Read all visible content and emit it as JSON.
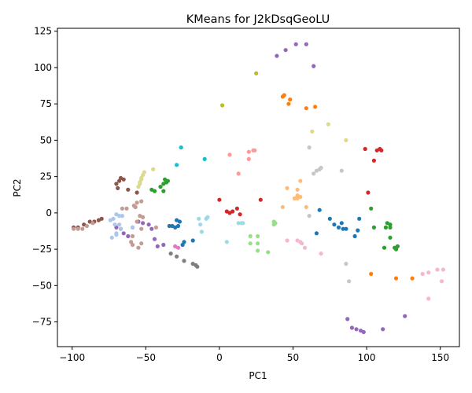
{
  "chart_data": {
    "type": "scatter",
    "title": "KMeans for J2kDsqGeoLU",
    "xlabel": "PC1",
    "ylabel": "PC2",
    "xlim": [
      -110,
      163
    ],
    "ylim": [
      -92,
      127
    ],
    "xticks": [
      -100,
      -50,
      0,
      50,
      100,
      150
    ],
    "yticks": [
      -75,
      -50,
      -25,
      0,
      25,
      50,
      75,
      100,
      125
    ],
    "grid": false,
    "legend": false,
    "series": [
      {
        "color": "#9467bd",
        "points": [
          [
            39,
            108
          ],
          [
            45,
            112
          ],
          [
            52,
            116
          ],
          [
            59,
            116
          ],
          [
            64,
            101
          ],
          [
            87,
            -73
          ],
          [
            90,
            -79
          ],
          [
            93,
            -80
          ],
          [
            96,
            -81
          ],
          [
            98,
            -82
          ],
          [
            111,
            -80
          ],
          [
            126,
            -71
          ],
          [
            -70,
            -10
          ],
          [
            -67,
            -11
          ],
          [
            -65,
            -14
          ],
          [
            -62,
            -16
          ],
          [
            -59,
            -10
          ],
          [
            -55,
            -6
          ],
          [
            -52,
            -7
          ],
          [
            -48,
            -8
          ],
          [
            -46,
            -11
          ],
          [
            -44,
            -18
          ],
          [
            -42,
            -23
          ],
          [
            -38,
            -22
          ]
        ]
      },
      {
        "color": "#ff7f0e",
        "points": [
          [
            43,
            80
          ],
          [
            44,
            81
          ],
          [
            47,
            75
          ],
          [
            48,
            78
          ],
          [
            59,
            72
          ],
          [
            65,
            73
          ],
          [
            103,
            -42
          ],
          [
            120,
            -45
          ],
          [
            131,
            -45
          ]
        ]
      },
      {
        "color": "#bcbd22",
        "points": [
          [
            25,
            96
          ],
          [
            2,
            74
          ]
        ]
      },
      {
        "color": "#dbdb8d",
        "points": [
          [
            -45,
            30
          ],
          [
            -51,
            28
          ],
          [
            -52,
            26
          ],
          [
            -53,
            23
          ],
          [
            -54,
            20
          ],
          [
            -55,
            18
          ],
          [
            -54,
            21
          ],
          [
            -53,
            24
          ],
          [
            63,
            56
          ],
          [
            74,
            61
          ],
          [
            86,
            50
          ]
        ]
      },
      {
        "color": "#17becf",
        "points": [
          [
            -26,
            45
          ],
          [
            -10,
            37
          ],
          [
            -29,
            33
          ]
        ]
      },
      {
        "color": "#ff9896",
        "points": [
          [
            7,
            40
          ],
          [
            20,
            37
          ],
          [
            20,
            42
          ],
          [
            23,
            43
          ],
          [
            24,
            43
          ],
          [
            13,
            27
          ]
        ]
      },
      {
        "color": "#c7c7c7",
        "points": [
          [
            61,
            45
          ],
          [
            64,
            27
          ],
          [
            66,
            29
          ],
          [
            68,
            30
          ],
          [
            69,
            31
          ],
          [
            83,
            29
          ],
          [
            61,
            -2
          ],
          [
            86,
            -35
          ],
          [
            88,
            -47
          ]
        ]
      },
      {
        "color": "#d62728",
        "points": [
          [
            99,
            44
          ],
          [
            107,
            43
          ],
          [
            109,
            44
          ],
          [
            110,
            43
          ],
          [
            105,
            36
          ],
          [
            101,
            14
          ],
          [
            0,
            9
          ],
          [
            5,
            1
          ],
          [
            7,
            0
          ],
          [
            9,
            1
          ],
          [
            12,
            3
          ],
          [
            14,
            -1
          ],
          [
            28,
            9
          ]
        ]
      },
      {
        "color": "#8c564b",
        "points": [
          [
            -67,
            24
          ],
          [
            -65,
            23
          ],
          [
            -68,
            22
          ],
          [
            -70,
            20
          ],
          [
            -69,
            17
          ],
          [
            -62,
            16
          ],
          [
            -56,
            14
          ],
          [
            -80,
            -4
          ],
          [
            -82,
            -5
          ],
          [
            -85,
            -6
          ],
          [
            -88,
            -6
          ],
          [
            -92,
            -8
          ],
          [
            -96,
            -10
          ],
          [
            -99,
            -10
          ]
        ]
      },
      {
        "color": "#2ca02c",
        "points": [
          [
            -37,
            23
          ],
          [
            -36,
            21
          ],
          [
            -38,
            20
          ],
          [
            -35,
            22
          ],
          [
            -40,
            18
          ],
          [
            -44,
            15
          ],
          [
            -38,
            15
          ],
          [
            -46,
            16
          ],
          [
            103,
            3
          ],
          [
            105,
            -10
          ],
          [
            113,
            -10
          ],
          [
            116,
            -8
          ],
          [
            116,
            -10
          ],
          [
            114,
            -7
          ],
          [
            116,
            -17
          ],
          [
            112,
            -24
          ],
          [
            120,
            -25
          ],
          [
            119,
            -24
          ],
          [
            121,
            -23
          ]
        ]
      },
      {
        "color": "#c49c94",
        "points": [
          [
            -66,
            3
          ],
          [
            -63,
            3
          ],
          [
            -58,
            5
          ],
          [
            -57,
            4
          ],
          [
            -56,
            7
          ],
          [
            -53,
            8
          ],
          [
            -54,
            -2
          ],
          [
            -52,
            -3
          ],
          [
            -56,
            -6
          ],
          [
            -53,
            -11
          ],
          [
            -59,
            -16
          ],
          [
            -60,
            -20
          ],
          [
            -59,
            -22
          ],
          [
            -55,
            -24
          ],
          [
            -53,
            -21
          ],
          [
            -43,
            -10
          ],
          [
            -86,
            -7
          ],
          [
            -90,
            -9
          ],
          [
            -93,
            -11
          ],
          [
            -96,
            -11
          ],
          [
            -99,
            -11
          ]
        ]
      },
      {
        "color": "#aec7e8",
        "points": [
          [
            -70,
            -1
          ],
          [
            -68,
            -2
          ],
          [
            -66,
            -2
          ],
          [
            -72,
            -4
          ],
          [
            -74,
            -5
          ],
          [
            -71,
            -8
          ],
          [
            -68,
            -8
          ],
          [
            -70,
            -14
          ],
          [
            -73,
            -17
          ],
          [
            -70,
            -15
          ],
          [
            -67,
            -11
          ],
          [
            -59,
            -10
          ]
        ]
      },
      {
        "color": "#1f77b4",
        "points": [
          [
            -34,
            -9
          ],
          [
            -32,
            -9
          ],
          [
            -30,
            -10
          ],
          [
            -28,
            -9
          ],
          [
            -29,
            -5
          ],
          [
            -27,
            -6
          ],
          [
            -18,
            -19
          ],
          [
            -24,
            -20
          ],
          [
            -25,
            -22
          ]
        ]
      },
      {
        "color": "#e377c2",
        "points": [
          [
            -30,
            -23
          ],
          [
            -28,
            -24
          ]
        ]
      },
      {
        "color": "#7f7f7f",
        "points": [
          [
            -33,
            -28
          ],
          [
            -29,
            -30
          ],
          [
            -24,
            -33
          ],
          [
            -18,
            -35
          ],
          [
            -16,
            -36
          ],
          [
            -15,
            -37
          ]
        ]
      },
      {
        "color": "#9edae5",
        "points": [
          [
            -14,
            -4
          ],
          [
            -8,
            -3
          ],
          [
            -9,
            -4
          ],
          [
            -13,
            -8
          ],
          [
            -12,
            -13
          ],
          [
            5,
            -20
          ],
          [
            13,
            -7
          ],
          [
            15,
            -7
          ],
          [
            16,
            -7
          ]
        ]
      },
      {
        "color": "#98df8a",
        "points": [
          [
            21,
            -16
          ],
          [
            21,
            -21
          ],
          [
            26,
            -16
          ],
          [
            26,
            -21
          ],
          [
            37,
            -6
          ],
          [
            38,
            -7
          ],
          [
            37,
            -8
          ],
          [
            33,
            -27
          ],
          [
            26,
            -26
          ]
        ]
      },
      {
        "color": "#ffbb78",
        "points": [
          [
            46,
            17
          ],
          [
            53,
            16
          ],
          [
            55,
            22
          ],
          [
            53,
            12
          ],
          [
            51,
            10
          ],
          [
            53,
            10
          ],
          [
            55,
            11
          ],
          [
            43,
            4
          ],
          [
            59,
            4
          ]
        ]
      },
      {
        "color": "#f7b6d2",
        "points": [
          [
            46,
            -19
          ],
          [
            53,
            -19
          ],
          [
            55,
            -20
          ],
          [
            56,
            -21
          ],
          [
            58,
            -24
          ],
          [
            69,
            -28
          ],
          [
            138,
            -42
          ],
          [
            142,
            -41
          ],
          [
            148,
            -39
          ],
          [
            152,
            -39
          ],
          [
            151,
            -47
          ],
          [
            142,
            -59
          ]
        ]
      },
      {
        "color": "#1f77b4",
        "points": [
          [
            68,
            2
          ],
          [
            75,
            -4
          ],
          [
            78,
            -8
          ],
          [
            81,
            -10
          ],
          [
            84,
            -11
          ],
          [
            86,
            -11
          ],
          [
            83,
            -7
          ],
          [
            66,
            -14
          ],
          [
            92,
            -16
          ],
          [
            94,
            -12
          ],
          [
            95,
            -4
          ]
        ]
      }
    ]
  }
}
